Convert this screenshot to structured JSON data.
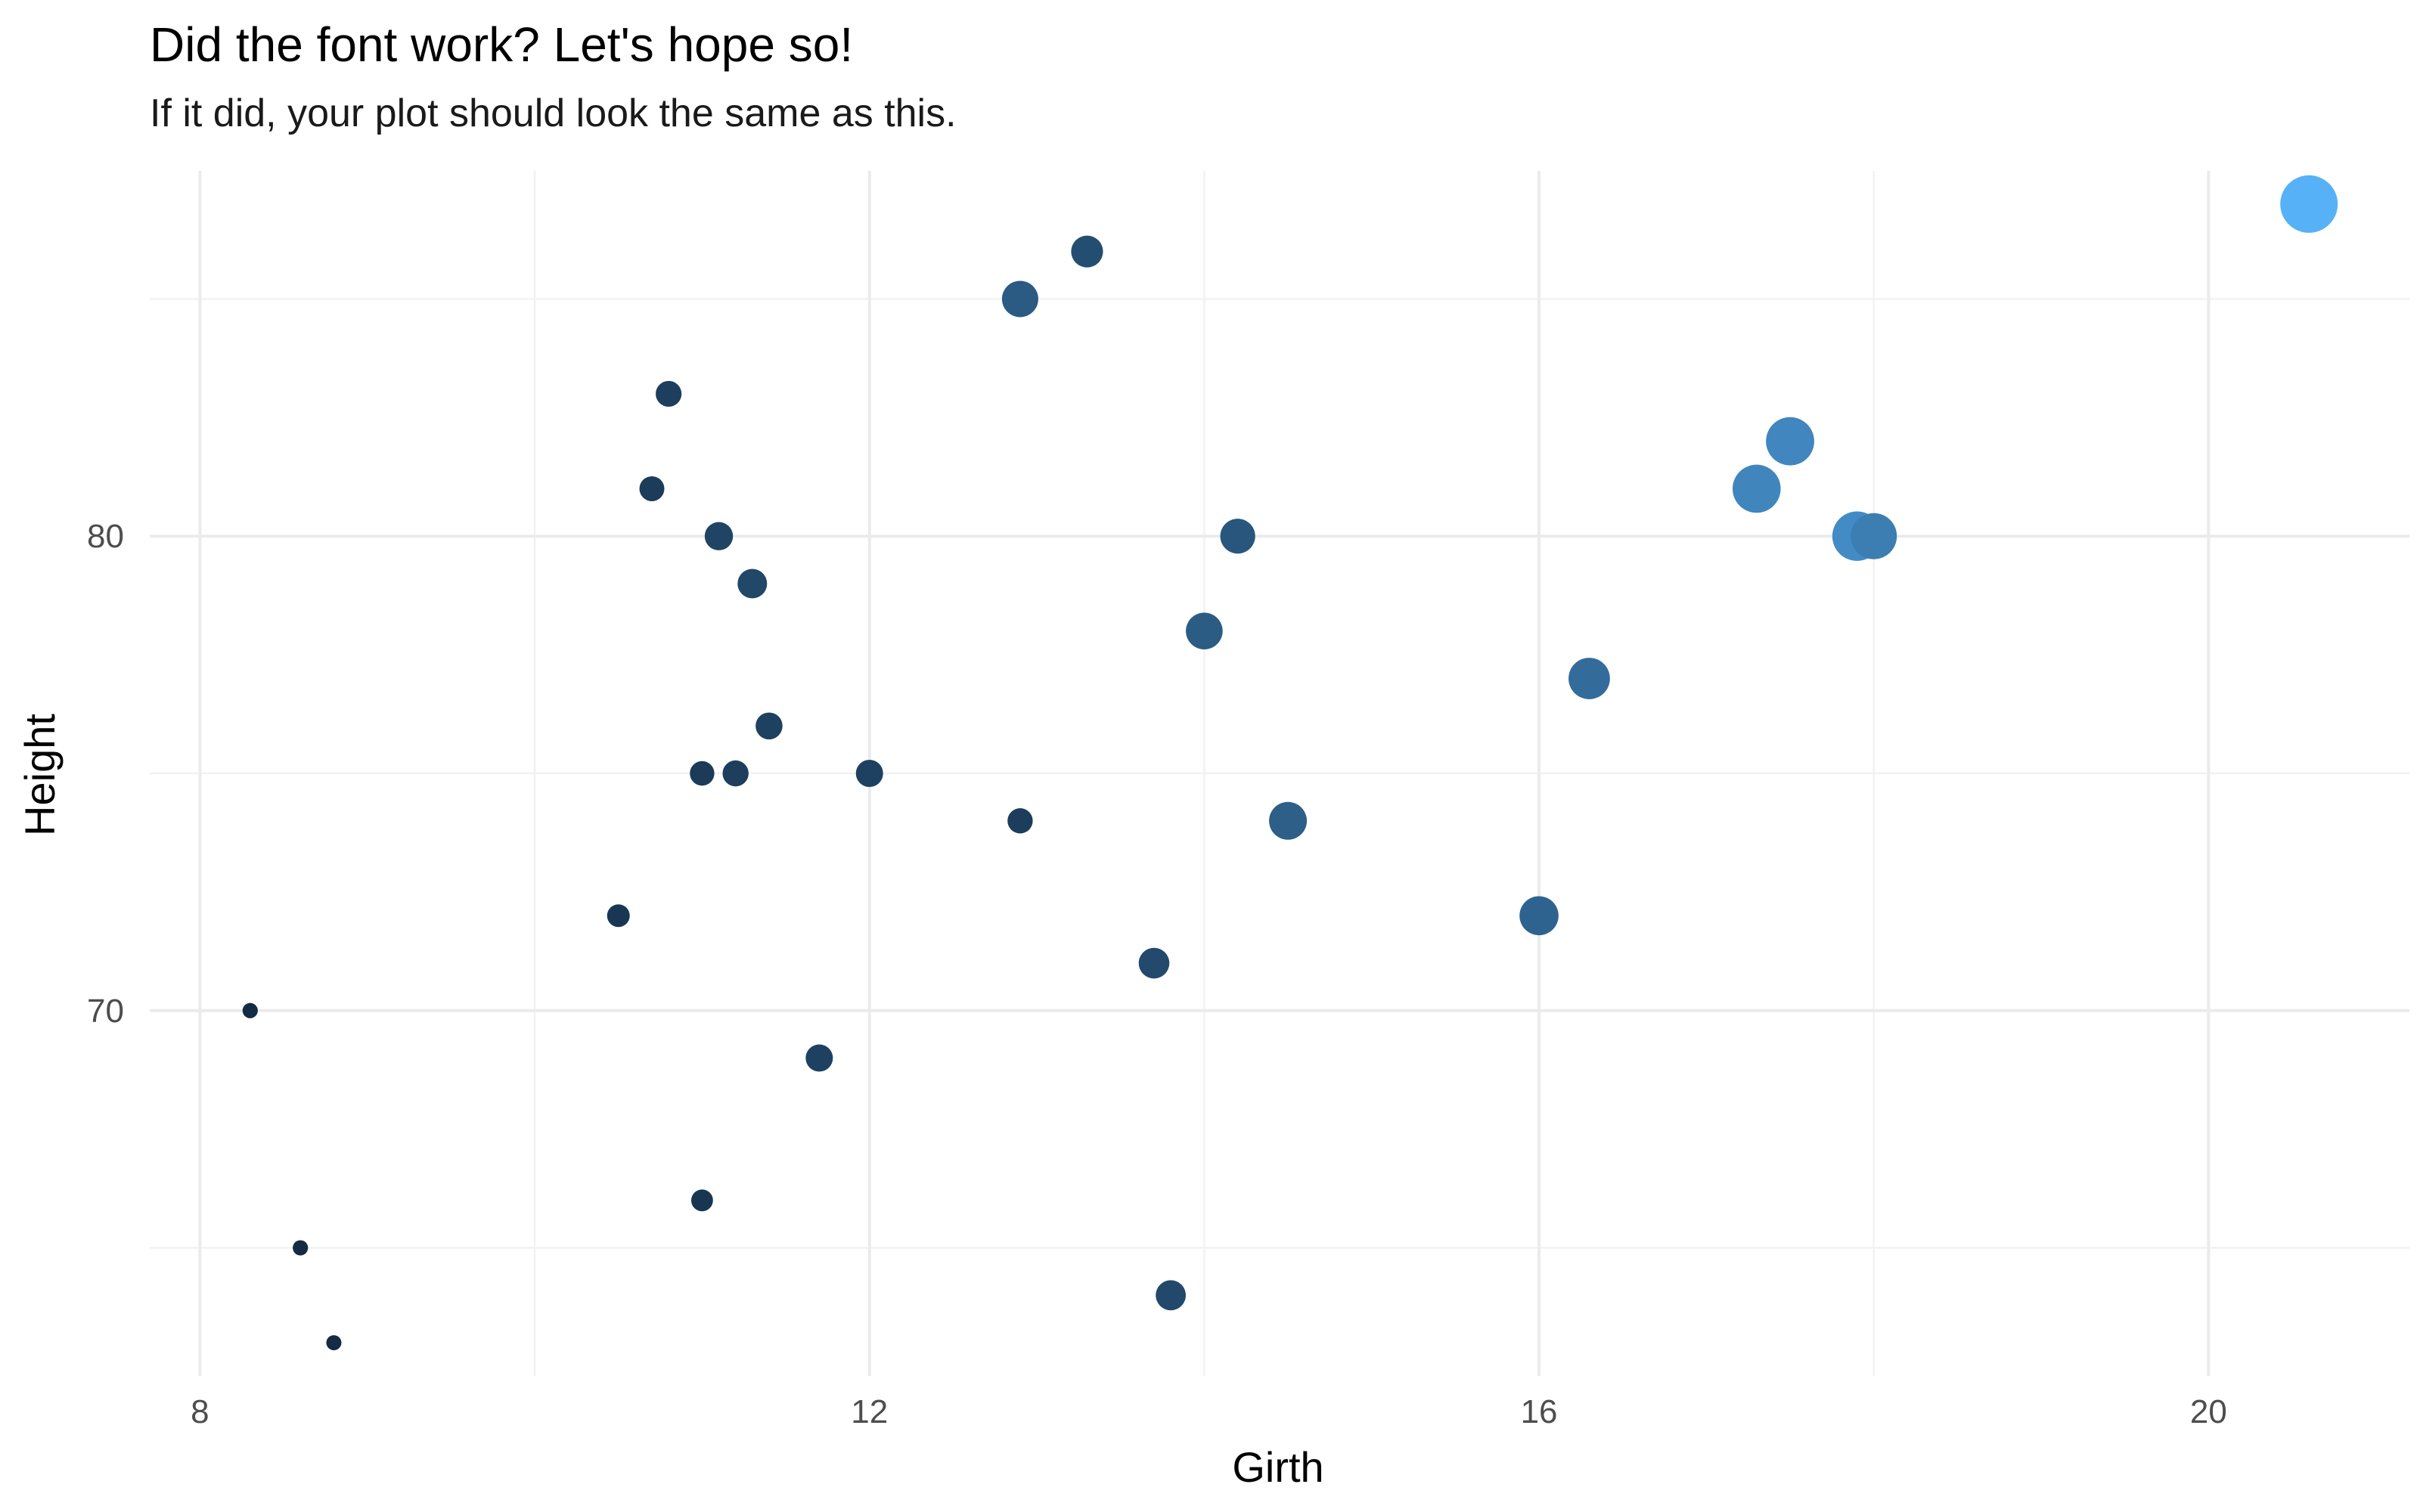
{
  "chart_data": {
    "type": "scatter",
    "title": "Did the font work? Let's hope so!",
    "subtitle": "If it did, your plot should look the same as this.",
    "xlabel": "Girth",
    "ylabel": "Height",
    "xlim": [
      7.7,
      21.2
    ],
    "ylim": [
      62.3,
      87.7
    ],
    "x_major_ticks": [
      8,
      12,
      16,
      20
    ],
    "x_minor_ticks": [
      10,
      14,
      18
    ],
    "y_major_ticks": [
      70,
      80
    ],
    "y_minor_ticks": [
      65,
      75,
      85
    ],
    "size_encodes": "Volume",
    "color_encodes": "Volume",
    "color_low": "#132B43",
    "color_high": "#56B1F7",
    "volume_range": [
      10.2,
      77.0
    ],
    "grid": true,
    "legend": "none",
    "points": [
      {
        "x": 8.3,
        "y": 70,
        "volume": 10.3
      },
      {
        "x": 8.6,
        "y": 65,
        "volume": 10.3
      },
      {
        "x": 8.8,
        "y": 63,
        "volume": 10.2
      },
      {
        "x": 10.5,
        "y": 72,
        "volume": 16.4
      },
      {
        "x": 10.7,
        "y": 81,
        "volume": 18.8
      },
      {
        "x": 10.8,
        "y": 83,
        "volume": 19.7
      },
      {
        "x": 11.0,
        "y": 66,
        "volume": 15.6
      },
      {
        "x": 11.0,
        "y": 75,
        "volume": 18.2
      },
      {
        "x": 11.1,
        "y": 80,
        "volume": 22.6
      },
      {
        "x": 11.2,
        "y": 75,
        "volume": 19.9
      },
      {
        "x": 11.3,
        "y": 79,
        "volume": 24.2
      },
      {
        "x": 11.4,
        "y": 76,
        "volume": 21.0
      },
      {
        "x": 11.7,
        "y": 69,
        "volume": 21.4
      },
      {
        "x": 12.0,
        "y": 75,
        "volume": 21.3
      },
      {
        "x": 12.9,
        "y": 74,
        "volume": 19.1
      },
      {
        "x": 12.9,
        "y": 85,
        "volume": 33.8
      },
      {
        "x": 13.3,
        "y": 86,
        "volume": 27.4
      },
      {
        "x": 13.7,
        "y": 71,
        "volume": 25.7
      },
      {
        "x": 13.8,
        "y": 64,
        "volume": 24.9
      },
      {
        "x": 14.0,
        "y": 78,
        "volume": 34.5
      },
      {
        "x": 14.2,
        "y": 80,
        "volume": 31.7
      },
      {
        "x": 14.5,
        "y": 74,
        "volume": 36.3
      },
      {
        "x": 16.0,
        "y": 72,
        "volume": 38.3
      },
      {
        "x": 16.3,
        "y": 77,
        "volume": 42.6
      },
      {
        "x": 17.3,
        "y": 81,
        "volume": 55.4
      },
      {
        "x": 17.5,
        "y": 82,
        "volume": 55.7
      },
      {
        "x": 17.9,
        "y": 80,
        "volume": 58.3
      },
      {
        "x": 18.0,
        "y": 80,
        "volume": 51.5
      },
      {
        "x": 20.6,
        "y": 87,
        "volume": 77.0
      }
    ]
  }
}
